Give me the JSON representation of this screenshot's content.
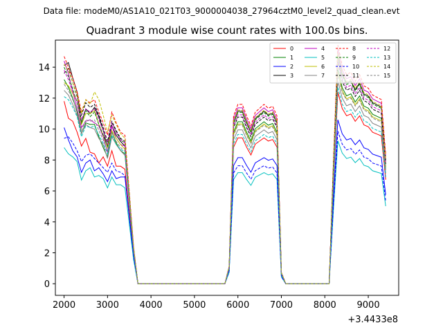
{
  "header": {
    "data_file": "Data file: modeM0/AS1A10_021T03_9000004038_27964cztM0_level2_quad_clean.evt"
  },
  "chart_data": {
    "type": "line",
    "title": "Quadrant 3 module wise count rates with 100.0s bins.",
    "xlabel": "",
    "ylabel": "",
    "x_offset_label": "+3.4433e8",
    "xlim": [
      1800,
      9700
    ],
    "ylim": [
      -0.75,
      15.75
    ],
    "xticks": [
      2000,
      3000,
      4000,
      5000,
      6000,
      7000,
      8000,
      9000
    ],
    "yticks": [
      0,
      2,
      4,
      6,
      8,
      10,
      12,
      14
    ],
    "grid": false,
    "legend_position": "top-right",
    "legend_columns": 4,
    "x": [
      2000,
      2100,
      2200,
      2300,
      2400,
      2500,
      2600,
      2700,
      2800,
      2900,
      3000,
      3100,
      3200,
      3300,
      3400,
      3500,
      3600,
      3700,
      3800,
      3900,
      4000,
      4100,
      4200,
      4300,
      4400,
      4500,
      4600,
      4700,
      4800,
      4900,
      5000,
      5100,
      5200,
      5300,
      5400,
      5500,
      5600,
      5700,
      5800,
      5900,
      6000,
      6100,
      6200,
      6300,
      6400,
      6500,
      6600,
      6700,
      6800,
      6900,
      7000,
      7100,
      7200,
      7300,
      7400,
      7500,
      7600,
      7700,
      7800,
      7900,
      8000,
      8100,
      8200,
      8300,
      8400,
      8500,
      8600,
      8700,
      8800,
      8900,
      9000,
      9100,
      9200,
      9300,
      9400
    ],
    "segments": [
      {
        "x_start": 2000,
        "x_end": 9400
      }
    ],
    "series": [
      {
        "name": "0",
        "color": "#ff0000",
        "dash": "solid",
        "a": [
          11.8,
          10.7,
          10.5,
          9.8,
          8.9,
          9.4,
          8.5,
          8.4,
          7.8,
          8.2,
          7.6,
          8.6,
          7.6,
          7.6,
          7.4
        ]
      },
      {
        "name": "1",
        "color": "#008000",
        "dash": "solid",
        "a": [
          13.2,
          12.7,
          12.0,
          11.1,
          9.7,
          10.4,
          10.3,
          10.3,
          9.5,
          8.8,
          8.2,
          9.8,
          9.1,
          8.6,
          8.4
        ]
      },
      {
        "name": "2",
        "color": "#0000ff",
        "dash": "solid",
        "a": [
          10.1,
          9.3,
          8.6,
          8.2,
          7.2,
          7.8,
          8.0,
          7.3,
          7.5,
          7.1,
          6.6,
          7.3,
          6.8,
          6.9,
          6.9
        ]
      },
      {
        "name": "3",
        "color": "#000000",
        "dash": "solid",
        "a": [
          14.1,
          14.3,
          13.3,
          12.4,
          10.4,
          11.3,
          11.0,
          11.4,
          10.8,
          9.9,
          8.8,
          10.2,
          9.6,
          9.2,
          8.9
        ]
      },
      {
        "name": "4",
        "color": "#bf00bf",
        "dash": "solid",
        "a": [
          14.4,
          13.6,
          12.4,
          11.3,
          10.1,
          10.5,
          10.6,
          10.4,
          10.2,
          9.5,
          8.5,
          10.2,
          9.4,
          9.0,
          8.9
        ]
      },
      {
        "name": "5",
        "color": "#00bfbf",
        "dash": "solid",
        "a": [
          8.8,
          8.4,
          8.2,
          7.9,
          6.7,
          7.3,
          7.5,
          6.9,
          7.0,
          6.8,
          6.2,
          6.9,
          6.4,
          6.4,
          6.2
        ]
      },
      {
        "name": "6",
        "color": "#bfbf00",
        "dash": "solid",
        "a": [
          13.0,
          12.8,
          12.3,
          11.8,
          10.3,
          11.0,
          11.0,
          11.2,
          10.3,
          9.6,
          8.8,
          9.9,
          9.4,
          9.0,
          8.7
        ]
      },
      {
        "name": "7",
        "color": "#808080",
        "dash": "solid",
        "a": [
          12.5,
          12.2,
          11.6,
          10.9,
          9.7,
          10.3,
          10.1,
          10.0,
          9.4,
          9.0,
          8.1,
          9.5,
          9.0,
          8.6,
          8.3
        ]
      },
      {
        "name": "8",
        "color": "#ff0000",
        "dash": "dashed",
        "a": [
          14.7,
          14.0,
          13.3,
          12.4,
          11.1,
          11.9,
          11.7,
          11.9,
          11.1,
          10.4,
          9.6,
          11.1,
          10.4,
          9.8,
          9.6
        ]
      },
      {
        "name": "9",
        "color": "#008000",
        "dash": "dashed",
        "a": [
          14.0,
          13.4,
          12.6,
          11.7,
          10.4,
          11.2,
          10.8,
          11.1,
          10.3,
          9.6,
          8.9,
          10.4,
          9.8,
          9.3,
          9.1
        ]
      },
      {
        "name": "10",
        "color": "#0000ff",
        "dash": "dashed",
        "a": [
          9.4,
          9.5,
          9.1,
          8.6,
          7.9,
          8.3,
          8.4,
          8.1,
          7.8,
          7.5,
          7.2,
          7.8,
          7.3,
          7.2,
          7.0
        ]
      },
      {
        "name": "11",
        "color": "#000000",
        "dash": "dashed",
        "a": [
          13.6,
          13.9,
          13.0,
          12.1,
          10.9,
          11.7,
          11.4,
          11.6,
          10.9,
          10.1,
          9.2,
          10.5,
          9.9,
          9.4,
          9.2
        ]
      },
      {
        "name": "12",
        "color": "#bf00bf",
        "dash": "dashed",
        "a": [
          13.8,
          13.2,
          12.4,
          11.8,
          10.6,
          11.3,
          11.1,
          11.3,
          10.6,
          9.9,
          9.0,
          10.4,
          9.8,
          9.3,
          9.1
        ]
      },
      {
        "name": "13",
        "color": "#00bfbf",
        "dash": "dashed",
        "a": [
          12.1,
          11.9,
          11.4,
          10.8,
          9.5,
          10.2,
          10.1,
          10.2,
          9.6,
          9.1,
          8.4,
          9.6,
          9.0,
          8.7,
          8.5
        ]
      },
      {
        "name": "14",
        "color": "#bfbf00",
        "dash": "dashed",
        "a": [
          14.2,
          13.8,
          13.0,
          12.2,
          11.0,
          11.9,
          11.6,
          12.4,
          11.9,
          10.9,
          9.8,
          10.9,
          10.3,
          9.7,
          9.4
        ]
      },
      {
        "name": "15",
        "color": "#808080",
        "dash": "dashed",
        "a": [
          12.9,
          12.5,
          11.9,
          11.2,
          9.9,
          10.6,
          10.5,
          10.6,
          9.9,
          9.3,
          8.6,
          9.8,
          9.2,
          8.8,
          8.6
        ]
      }
    ],
    "profile": {
      "gap1": {
        "x": [
          3600,
          3700,
          3800,
          5600,
          5700,
          5800
        ],
        "scale": [
          0.25,
          0.0,
          0.0,
          0.0,
          0.0,
          0.12
        ]
      },
      "mid": {
        "x": [
          5900,
          6000,
          6100,
          6200,
          6300,
          6400,
          6500,
          6600,
          6700,
          6800,
          6900
        ],
        "scale": [
          0.82,
          0.88,
          0.88,
          0.82,
          0.77,
          0.84,
          0.86,
          0.88,
          0.86,
          0.87,
          0.82
        ]
      },
      "gap2": {
        "x": [
          7000,
          7100,
          8100
        ],
        "scale": [
          0.05,
          0.0,
          0.0
        ]
      },
      "late": {
        "x": [
          8200,
          8300,
          8400,
          8500,
          8600,
          8700,
          8800,
          8900,
          9000,
          9100,
          9200,
          9300,
          9400
        ],
        "scale": [
          0.55,
          1.05,
          0.96,
          0.92,
          0.93,
          0.89,
          0.92,
          0.87,
          0.86,
          0.83,
          0.82,
          0.81,
          0.57
        ]
      }
    }
  }
}
